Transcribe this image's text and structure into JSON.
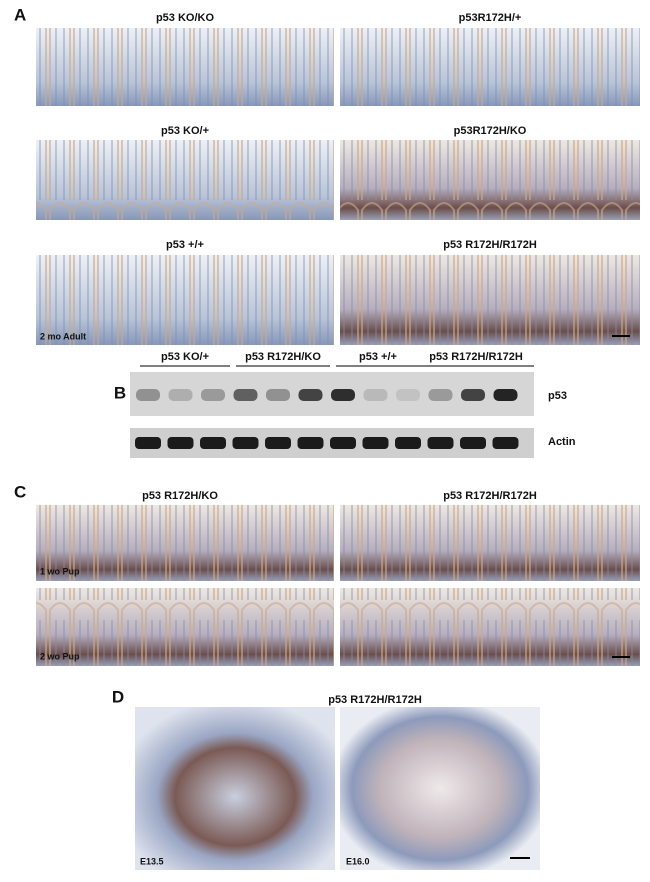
{
  "panel_a": {
    "label": "A",
    "rows": [
      [
        "p53 KO/KO",
        "p53R172H/+"
      ],
      [
        "p53 KO/+",
        "p53R172H/KO"
      ],
      [
        "p53 +/+",
        "p53 R172H/R172H"
      ]
    ],
    "note": "2 mo Adult"
  },
  "panel_b": {
    "label": "B",
    "groups": [
      "p53 KO/+",
      "p53 R172H/KO",
      "p53 +/+",
      "p53 R172H/R172H"
    ],
    "bands": [
      "p53",
      "Actin"
    ]
  },
  "panel_c": {
    "label": "C",
    "columns": [
      "p53 R172H/KO",
      "p53 R172H/R172H"
    ],
    "notes": [
      "1 wo Pup",
      "2 wo Pup"
    ]
  },
  "panel_d": {
    "label": "D",
    "title": "p53 R172H/R172H",
    "notes": [
      "E13.5",
      "E16.0"
    ]
  }
}
